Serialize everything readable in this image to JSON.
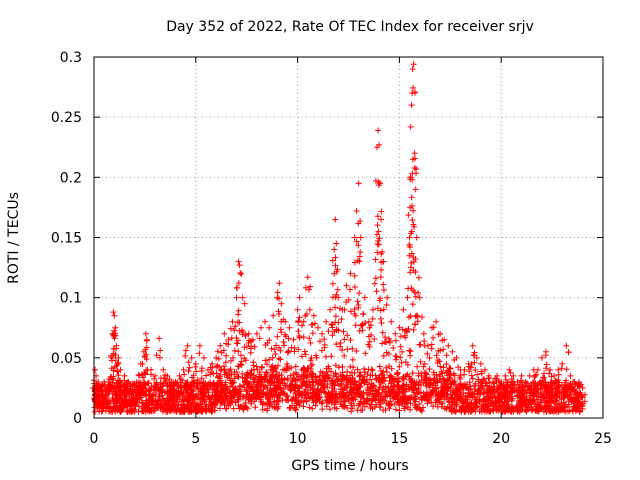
{
  "chart_data": {
    "type": "scatter",
    "title": "Day 352 of 2022, Rate Of TEC Index for receiver srjv",
    "xlabel": "GPS time / hours",
    "ylabel": "ROTI / TECUs",
    "xlim": [
      0,
      25
    ],
    "ylim": [
      0,
      0.3
    ],
    "xticks": [
      0,
      5,
      10,
      15,
      20,
      25
    ],
    "yticks": [
      0,
      0.05,
      0.1,
      0.15,
      0.2,
      0.25,
      0.3
    ],
    "xtick_labels": [
      "0",
      "5",
      "10",
      "15",
      "20",
      "25"
    ],
    "ytick_labels": [
      "0",
      "0.05",
      "0.1",
      "0.15",
      "0.2",
      "0.25",
      "0.3"
    ],
    "grid": true,
    "marker": "plus",
    "marker_color": "#ff0000",
    "series": [
      {
        "name": "ROTI",
        "points": [
          [
            0.05,
            0.04
          ],
          [
            0.1,
            0.035
          ],
          [
            0.2,
            0.03
          ],
          [
            0.3,
            0.025
          ],
          [
            0.4,
            0.028
          ],
          [
            0.5,
            0.03
          ],
          [
            0.6,
            0.022
          ],
          [
            0.7,
            0.03
          ],
          [
            0.85,
            0.05
          ],
          [
            0.9,
            0.07
          ],
          [
            0.95,
            0.088
          ],
          [
            1.0,
            0.085
          ],
          [
            1.05,
            0.075
          ],
          [
            1.1,
            0.06
          ],
          [
            1.2,
            0.05
          ],
          [
            1.3,
            0.04
          ],
          [
            1.5,
            0.035
          ],
          [
            1.7,
            0.03
          ],
          [
            1.9,
            0.028
          ],
          [
            2.1,
            0.03
          ],
          [
            2.3,
            0.045
          ],
          [
            2.45,
            0.055
          ],
          [
            2.55,
            0.07
          ],
          [
            2.6,
            0.065
          ],
          [
            2.8,
            0.04
          ],
          [
            3.0,
            0.035
          ],
          [
            3.2,
            0.066
          ],
          [
            3.4,
            0.04
          ],
          [
            3.6,
            0.035
          ],
          [
            3.8,
            0.03
          ],
          [
            4.0,
            0.03
          ],
          [
            4.2,
            0.035
          ],
          [
            4.4,
            0.04
          ],
          [
            4.6,
            0.06
          ],
          [
            4.8,
            0.05
          ],
          [
            5.0,
            0.045
          ],
          [
            5.2,
            0.06
          ],
          [
            5.4,
            0.05
          ],
          [
            5.6,
            0.04
          ],
          [
            5.8,
            0.045
          ],
          [
            6.0,
            0.05
          ],
          [
            6.2,
            0.06
          ],
          [
            6.4,
            0.07
          ],
          [
            6.6,
            0.065
          ],
          [
            6.8,
            0.08
          ],
          [
            7.0,
            0.1
          ],
          [
            7.1,
            0.13
          ],
          [
            7.15,
            0.127
          ],
          [
            7.3,
            0.1
          ],
          [
            7.4,
            0.095
          ],
          [
            7.6,
            0.07
          ],
          [
            7.8,
            0.065
          ],
          [
            8.0,
            0.07
          ],
          [
            8.2,
            0.075
          ],
          [
            8.4,
            0.08
          ],
          [
            8.6,
            0.075
          ],
          [
            8.8,
            0.085
          ],
          [
            9.0,
            0.1
          ],
          [
            9.1,
            0.112
          ],
          [
            9.2,
            0.095
          ],
          [
            9.4,
            0.08
          ],
          [
            9.6,
            0.075
          ],
          [
            9.8,
            0.065
          ],
          [
            10.0,
            0.09
          ],
          [
            10.1,
            0.1
          ],
          [
            10.3,
            0.08
          ],
          [
            10.5,
            0.117
          ],
          [
            10.6,
            0.09
          ],
          [
            10.8,
            0.085
          ],
          [
            11.0,
            0.075
          ],
          [
            11.2,
            0.07
          ],
          [
            11.4,
            0.08
          ],
          [
            11.6,
            0.09
          ],
          [
            11.8,
            0.14
          ],
          [
            11.85,
            0.165
          ],
          [
            11.9,
            0.145
          ],
          [
            12.0,
            0.1
          ],
          [
            12.2,
            0.09
          ],
          [
            12.4,
            0.11
          ],
          [
            12.6,
            0.12
          ],
          [
            12.8,
            0.15
          ],
          [
            12.9,
            0.172
          ],
          [
            13.0,
            0.195
          ],
          [
            13.1,
            0.15
          ],
          [
            13.3,
            0.1
          ],
          [
            13.5,
            0.08
          ],
          [
            13.7,
            0.09
          ],
          [
            13.9,
            0.225
          ],
          [
            13.95,
            0.239
          ],
          [
            14.0,
            0.227
          ],
          [
            14.05,
            0.195
          ],
          [
            14.1,
            0.165
          ],
          [
            14.2,
            0.13
          ],
          [
            14.4,
            0.1
          ],
          [
            14.6,
            0.08
          ],
          [
            14.8,
            0.07
          ],
          [
            15.0,
            0.075
          ],
          [
            15.2,
            0.09
          ],
          [
            15.4,
            0.1
          ],
          [
            15.5,
            0.15
          ],
          [
            15.55,
            0.2
          ],
          [
            15.6,
            0.26
          ],
          [
            15.62,
            0.27
          ],
          [
            15.65,
            0.29
          ],
          [
            15.7,
            0.294
          ],
          [
            15.75,
            0.22
          ],
          [
            15.8,
            0.19
          ],
          [
            15.85,
            0.15
          ],
          [
            16.0,
            0.1
          ],
          [
            16.2,
            0.07
          ],
          [
            16.4,
            0.06
          ],
          [
            16.6,
            0.075
          ],
          [
            16.8,
            0.08
          ],
          [
            17.0,
            0.07
          ],
          [
            17.2,
            0.065
          ],
          [
            17.4,
            0.06
          ],
          [
            17.6,
            0.055
          ],
          [
            17.8,
            0.05
          ],
          [
            18.0,
            0.04
          ],
          [
            18.2,
            0.04
          ],
          [
            18.4,
            0.045
          ],
          [
            18.6,
            0.06
          ],
          [
            18.8,
            0.05
          ],
          [
            19.0,
            0.045
          ],
          [
            19.2,
            0.04
          ],
          [
            19.4,
            0.035
          ],
          [
            19.6,
            0.03
          ],
          [
            19.8,
            0.035
          ],
          [
            20.0,
            0.03
          ],
          [
            20.2,
            0.035
          ],
          [
            20.4,
            0.04
          ],
          [
            20.6,
            0.035
          ],
          [
            20.8,
            0.03
          ],
          [
            21.0,
            0.035
          ],
          [
            21.2,
            0.03
          ],
          [
            21.4,
            0.035
          ],
          [
            21.6,
            0.04
          ],
          [
            21.8,
            0.04
          ],
          [
            22.0,
            0.05
          ],
          [
            22.2,
            0.055
          ],
          [
            22.4,
            0.04
          ],
          [
            22.6,
            0.035
          ],
          [
            22.8,
            0.04
          ],
          [
            23.0,
            0.045
          ],
          [
            23.2,
            0.06
          ],
          [
            23.4,
            0.035
          ],
          [
            23.6,
            0.03
          ],
          [
            23.8,
            0.028
          ],
          [
            24.0,
            0.025
          ]
        ]
      }
    ],
    "baseline_band": {
      "x_range": [
        0,
        24
      ],
      "y_range": [
        0.005,
        0.03
      ],
      "note": "dense cloud of points along the bottom of the plot"
    }
  }
}
